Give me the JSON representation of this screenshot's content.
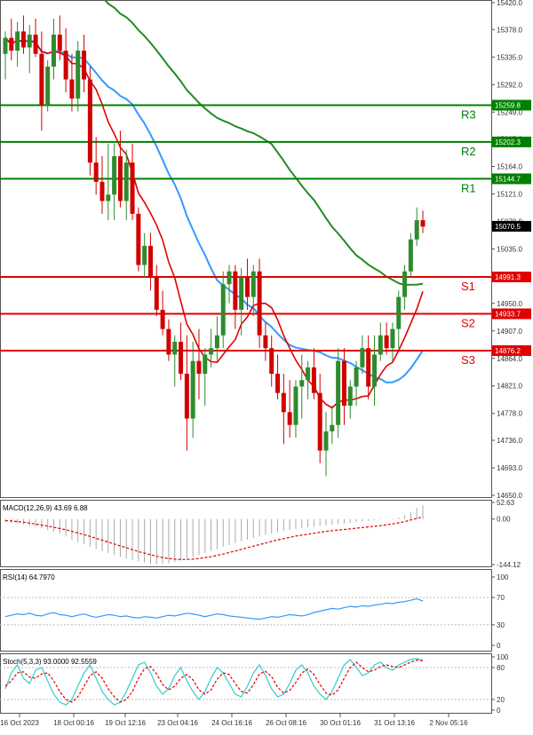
{
  "chart_data": [
    {
      "type": "candlestick",
      "panel": "price",
      "y_ticks": [
        "15420.0",
        "15378.0",
        "15335.0",
        "15292.0",
        "15249.0",
        "15207.0",
        "15164.0",
        "15121.0",
        "15078.0",
        "15035.0",
        "14993.0",
        "14950.0",
        "14907.0",
        "14864.0",
        "14821.0",
        "14778.0",
        "14736.0",
        "14693.0",
        "14650.0"
      ],
      "ylim": [
        14650,
        15420
      ],
      "x_ticks": [
        "16 Oct 2023",
        "18 Oct 00:16",
        "19 Oct 12:16",
        "23 Oct 04:16",
        "24 Oct 16:16",
        "26 Oct 08:16",
        "30 Oct 01:16",
        "31 Oct 13:16",
        "2 Nov 05:16"
      ],
      "current_price": "15070.5",
      "levels": [
        {
          "name": "R3",
          "value": 15259.8,
          "label": "15259.8",
          "color": "#008000"
        },
        {
          "name": "R2",
          "value": 15202.3,
          "label": "15202.3",
          "color": "#008000"
        },
        {
          "name": "R1",
          "value": 15144.7,
          "label": "15144.7",
          "color": "#008000"
        },
        {
          "name": "S1",
          "value": 14991.3,
          "label": "14991.3",
          "color": "#e00000"
        },
        {
          "name": "S2",
          "value": 14933.7,
          "label": "14933.7",
          "color": "#e00000"
        },
        {
          "name": "S3",
          "value": 14876.2,
          "label": "14876.2",
          "color": "#e00000"
        }
      ],
      "candles": [
        [
          15340,
          15375,
          15300,
          15365
        ],
        [
          15365,
          15395,
          15330,
          15345
        ],
        [
          15345,
          15390,
          15320,
          15375
        ],
        [
          15375,
          15400,
          15340,
          15350
        ],
        [
          15350,
          15385,
          15310,
          15370
        ],
        [
          15370,
          15395,
          15335,
          15340
        ],
        [
          15340,
          15375,
          15220,
          15260
        ],
        [
          15260,
          15330,
          15250,
          15320
        ],
        [
          15320,
          15395,
          15300,
          15370
        ],
        [
          15370,
          15400,
          15330,
          15345
        ],
        [
          15345,
          15380,
          15280,
          15300
        ],
        [
          15300,
          15340,
          15250,
          15270
        ],
        [
          15270,
          15360,
          15250,
          15345
        ],
        [
          15345,
          15370,
          15280,
          15300
        ],
        [
          15300,
          15320,
          15150,
          15170
        ],
        [
          15170,
          15210,
          15120,
          15140
        ],
        [
          15140,
          15180,
          15090,
          15110
        ],
        [
          15110,
          15200,
          15080,
          15120
        ],
        [
          15120,
          15200,
          15080,
          15180
        ],
        [
          15180,
          15220,
          15100,
          15110
        ],
        [
          15110,
          15190,
          15080,
          15170
        ],
        [
          15170,
          15200,
          15080,
          15090
        ],
        [
          15090,
          15100,
          15000,
          15010
        ],
        [
          15010,
          15060,
          14990,
          15040
        ],
        [
          15040,
          15060,
          14970,
          14990
        ],
        [
          14990,
          15010,
          14930,
          14940
        ],
        [
          14940,
          14970,
          14900,
          14910
        ],
        [
          14910,
          14925,
          14860,
          14870
        ],
        [
          14870,
          14900,
          14820,
          14890
        ],
        [
          14890,
          14920,
          14830,
          14840
        ],
        [
          14840,
          14900,
          14720,
          14770
        ],
        [
          14770,
          14890,
          14740,
          14860
        ],
        [
          14860,
          14910,
          14800,
          14840
        ],
        [
          14840,
          14880,
          14790,
          14870
        ],
        [
          14870,
          14910,
          14850,
          14880
        ],
        [
          14880,
          14930,
          14860,
          14900
        ],
        [
          14900,
          15000,
          14880,
          14980
        ],
        [
          14980,
          15010,
          14950,
          15000
        ],
        [
          15000,
          15010,
          14910,
          14940
        ],
        [
          14940,
          15005,
          14900,
          14990
        ],
        [
          14990,
          15020,
          14940,
          14960
        ],
        [
          14960,
          15010,
          14930,
          15000
        ],
        [
          15000,
          15020,
          14880,
          14900
        ],
        [
          14900,
          14920,
          14860,
          14880
        ],
        [
          14880,
          14900,
          14820,
          14840
        ],
        [
          14840,
          14870,
          14800,
          14810
        ],
        [
          14810,
          14840,
          14730,
          14780
        ],
        [
          14780,
          14830,
          14740,
          14760
        ],
        [
          14760,
          14830,
          14740,
          14820
        ],
        [
          14820,
          14870,
          14770,
          14830
        ],
        [
          14830,
          14860,
          14800,
          14850
        ],
        [
          14850,
          14880,
          14800,
          14810
        ],
        [
          14810,
          14840,
          14700,
          14720
        ],
        [
          14720,
          14780,
          14680,
          14750
        ],
        [
          14750,
          14790,
          14730,
          14760
        ],
        [
          14760,
          14880,
          14740,
          14860
        ],
        [
          14860,
          14880,
          14760,
          14790
        ],
        [
          14790,
          14830,
          14770,
          14820
        ],
        [
          14820,
          14860,
          14790,
          14850
        ],
        [
          14850,
          14900,
          14840,
          14880
        ],
        [
          14880,
          14900,
          14800,
          14820
        ],
        [
          14820,
          14900,
          14790,
          14870
        ],
        [
          14870,
          14920,
          14860,
          14900
        ],
        [
          14900,
          14920,
          14870,
          14880
        ],
        [
          14880,
          14920,
          14860,
          14910
        ],
        [
          14910,
          14970,
          14880,
          14960
        ],
        [
          14960,
          15010,
          14940,
          15000
        ],
        [
          15000,
          15060,
          14990,
          15050
        ],
        [
          15050,
          15100,
          15040,
          15080
        ],
        [
          15080,
          15095,
          15060,
          15070
        ]
      ]
    },
    {
      "type": "line",
      "panel": "macd",
      "title": "MACD(12,26,9) 43.69 6.88",
      "y_ticks": [
        "52.63",
        "0.00",
        "-144.12"
      ],
      "ylim": [
        -144.12,
        52.63
      ],
      "series": [
        {
          "type": "histogram",
          "color": "#aaaaaa",
          "values": [
            -10,
            -12,
            -15,
            -18,
            -22,
            -25,
            -30,
            -35,
            -40,
            -45,
            -55,
            -65,
            -72,
            -80,
            -88,
            -95,
            -102,
            -108,
            -114,
            -120,
            -126,
            -130,
            -134,
            -138,
            -142,
            -143,
            -142,
            -140,
            -136,
            -131,
            -126,
            -120,
            -114,
            -108,
            -101,
            -95,
            -88,
            -82,
            -76,
            -70,
            -65,
            -60,
            -55,
            -50,
            -46,
            -42,
            -38,
            -34,
            -31,
            -28,
            -26,
            -24,
            -22,
            -20,
            -18,
            -16,
            -14,
            -12,
            -10,
            -8,
            -6,
            -4,
            -2,
            0,
            2,
            5,
            12,
            22,
            35,
            44
          ]
        },
        {
          "type": "line",
          "color": "#e00000",
          "dashed": true,
          "values": [
            -5,
            -6,
            -8,
            -10,
            -13,
            -16,
            -19,
            -22,
            -26,
            -30,
            -34,
            -39,
            -44,
            -49,
            -55,
            -61,
            -67,
            -73,
            -79,
            -85,
            -91,
            -97,
            -103,
            -108,
            -113,
            -118,
            -122,
            -125,
            -127,
            -128,
            -128,
            -127,
            -125,
            -122,
            -119,
            -115,
            -111,
            -106,
            -101,
            -96,
            -91,
            -86,
            -81,
            -76,
            -71,
            -66,
            -62,
            -58,
            -54,
            -51,
            -48,
            -45,
            -42,
            -39,
            -37,
            -35,
            -33,
            -31,
            -29,
            -27,
            -25,
            -23,
            -21,
            -18,
            -15,
            -12,
            -8,
            -3,
            2,
            7
          ]
        }
      ]
    },
    {
      "type": "line",
      "panel": "rsi",
      "title": "RSI(14) 64.7970",
      "y_ticks": [
        "100",
        "70",
        "30",
        "0"
      ],
      "ylim": [
        0,
        100
      ],
      "series": [
        {
          "color": "#3399ff",
          "values": [
            42,
            44,
            46,
            45,
            47,
            44,
            43,
            46,
            48,
            45,
            44,
            42,
            44,
            46,
            43,
            41,
            43,
            45,
            44,
            42,
            43,
            41,
            40,
            42,
            41,
            40,
            42,
            44,
            43,
            45,
            47,
            46,
            44,
            42,
            44,
            46,
            45,
            43,
            42,
            41,
            40,
            39,
            38,
            40,
            42,
            41,
            43,
            45,
            44,
            43,
            45,
            48,
            50,
            52,
            54,
            53,
            55,
            57,
            56,
            58,
            57,
            59,
            60,
            62,
            61,
            63,
            64,
            66,
            68,
            65
          ]
        }
      ]
    },
    {
      "type": "line",
      "panel": "stochastic",
      "title": "Stoch(5,3,3) 93.0000 92.5559",
      "y_ticks": [
        "100",
        "80",
        "20",
        "0"
      ],
      "ylim": [
        0,
        100
      ],
      "series": [
        {
          "color": "#33cccc",
          "values": [
            40,
            70,
            85,
            60,
            50,
            75,
            80,
            55,
            30,
            15,
            10,
            20,
            45,
            70,
            85,
            60,
            35,
            20,
            10,
            15,
            35,
            60,
            85,
            90,
            70,
            45,
            30,
            40,
            65,
            80,
            55,
            35,
            20,
            35,
            60,
            80,
            70,
            50,
            30,
            25,
            45,
            70,
            85,
            65,
            40,
            25,
            30,
            50,
            75,
            85,
            70,
            45,
            30,
            20,
            35,
            60,
            85,
            95,
            80,
            65,
            70,
            85,
            90,
            80,
            75,
            85,
            90,
            95,
            97,
            93
          ]
        },
        {
          "color": "#e00000",
          "dashed": true,
          "values": [
            45,
            55,
            70,
            72,
            62,
            60,
            68,
            70,
            55,
            35,
            20,
            15,
            25,
            45,
            65,
            72,
            60,
            40,
            25,
            15,
            20,
            35,
            60,
            78,
            82,
            68,
            48,
            38,
            45,
            60,
            67,
            57,
            38,
            30,
            38,
            58,
            70,
            67,
            50,
            35,
            32,
            48,
            68,
            73,
            63,
            43,
            32,
            37,
            52,
            70,
            77,
            67,
            48,
            32,
            28,
            38,
            60,
            80,
            90,
            80,
            72,
            75,
            82,
            85,
            82,
            80,
            85,
            90,
            94,
            92.6
          ]
        }
      ]
    }
  ]
}
